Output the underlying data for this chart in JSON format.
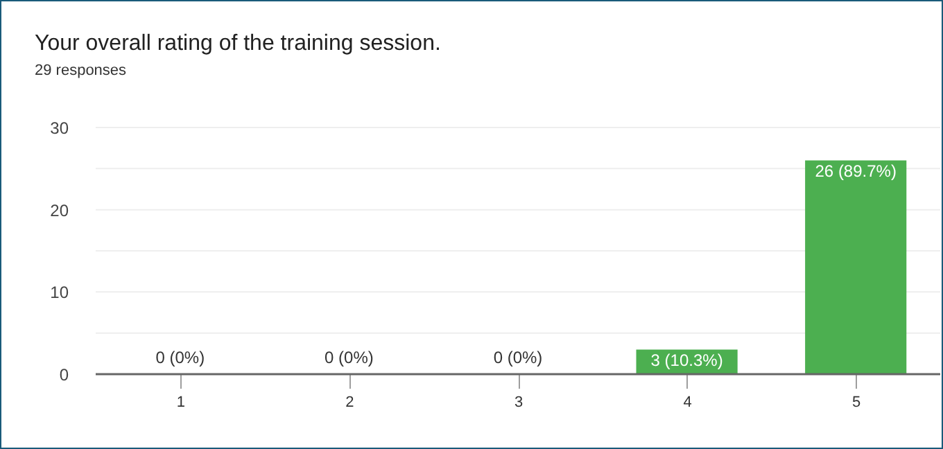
{
  "chart_data": {
    "type": "bar",
    "title": "Your overall rating of the training session.",
    "subtitle": "29 responses",
    "categories": [
      "1",
      "2",
      "3",
      "4",
      "5"
    ],
    "values": [
      0,
      0,
      0,
      3,
      26
    ],
    "value_labels": [
      "0 (0%)",
      "0 (0%)",
      "0 (0%)",
      "3 (10.3%)",
      "26 (89.7%)"
    ],
    "color": "#4caf50",
    "ylim": [
      0,
      30
    ],
    "yticks": [
      0,
      {
        "value": 5,
        "label": null
      },
      10,
      {
        "value": 15,
        "label": null
      },
      20,
      {
        "value": 25,
        "label": null
      },
      30
    ],
    "grid": "y"
  }
}
